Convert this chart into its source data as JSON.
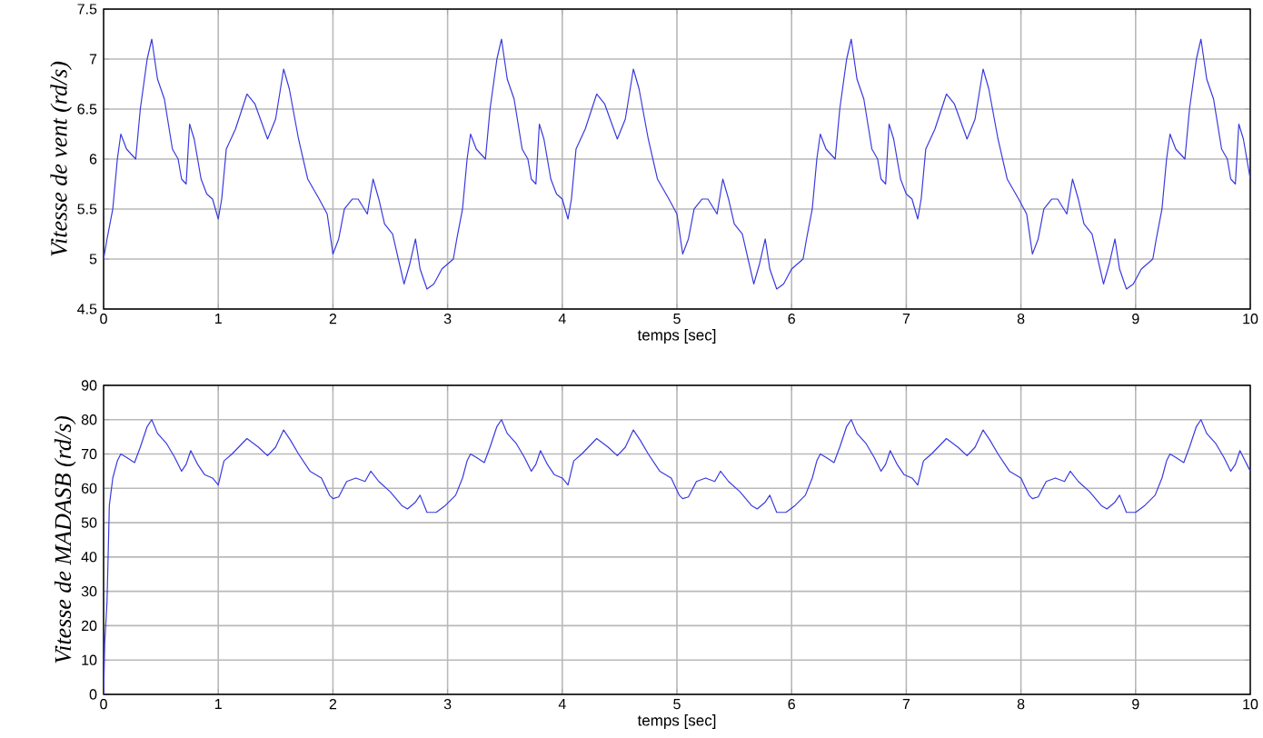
{
  "chart_data": [
    {
      "type": "line",
      "xlabel": "temps [sec]",
      "ylabel": "Vitesse de vent (rd/s)",
      "xlim": [
        0,
        10
      ],
      "ylim": [
        4.5,
        7.5
      ],
      "xticks": [
        0,
        1,
        2,
        3,
        4,
        5,
        6,
        7,
        8,
        9,
        10
      ],
      "yticks": [
        4.5,
        5,
        5.5,
        6,
        6.5,
        7,
        7.5
      ],
      "grid": true,
      "series": [
        {
          "color": "#3a3ae0",
          "x": [
            0,
            0.03,
            0.08,
            0.12,
            0.15,
            0.2,
            0.28,
            0.32,
            0.38,
            0.42,
            0.47,
            0.53,
            0.6,
            0.65,
            0.68,
            0.72,
            0.75,
            0.79,
            0.85,
            0.9,
            0.95,
            1.0,
            1.03,
            1.07,
            1.15,
            1.25,
            1.32,
            1.43,
            1.5,
            1.57,
            1.62,
            1.7,
            1.78,
            1.88,
            1.95,
            2.0,
            2.05,
            2.1,
            2.17,
            2.22,
            2.3,
            2.35,
            2.4,
            2.45,
            2.52,
            2.58,
            2.62,
            2.67,
            2.72,
            2.76,
            2.82,
            2.88,
            2.95,
            3.05,
            3.08,
            3.13,
            3.17,
            3.2,
            3.25,
            3.33,
            3.37,
            3.43,
            3.47,
            3.52,
            3.58,
            3.65,
            3.7,
            3.73,
            3.77,
            3.8,
            3.84,
            3.9,
            3.95,
            4.0,
            4.05,
            4.08,
            4.12,
            4.2,
            4.3,
            4.37,
            4.48,
            4.55,
            4.62,
            4.67,
            4.75,
            4.83,
            4.93,
            5.0,
            5.05,
            5.1,
            5.15,
            5.22,
            5.27,
            5.35,
            5.4,
            5.45,
            5.5,
            5.57,
            5.63,
            5.67,
            5.72,
            5.77,
            5.81,
            5.87,
            5.93,
            6.0,
            6.1,
            6.13,
            6.18,
            6.22,
            6.25,
            6.3,
            6.38,
            6.42,
            6.48,
            6.52,
            6.57,
            6.63,
            6.7,
            6.75,
            6.78,
            6.82,
            6.85,
            6.89,
            6.95,
            7.0,
            7.05,
            7.1,
            7.13,
            7.17,
            7.25,
            7.35,
            7.42,
            7.53,
            7.6,
            7.67,
            7.72,
            7.8,
            7.88,
            7.98,
            8.05,
            8.1,
            8.15,
            8.2,
            8.27,
            8.32,
            8.4,
            8.45,
            8.5,
            8.55,
            8.62,
            8.68,
            8.72,
            8.77,
            8.82,
            8.86,
            8.92,
            8.98,
            9.05,
            9.15,
            9.18,
            9.23,
            9.27,
            9.3,
            9.35,
            9.43,
            9.47,
            9.53,
            9.57,
            9.62,
            9.68,
            9.75,
            9.8,
            9.83,
            9.87,
            9.9,
            9.94,
            10.0
          ],
          "values": [
            5.0,
            5.2,
            5.5,
            6.0,
            6.25,
            6.1,
            6.0,
            6.5,
            7.0,
            7.2,
            6.8,
            6.6,
            6.1,
            6.0,
            5.8,
            5.75,
            6.35,
            6.2,
            5.8,
            5.65,
            5.6,
            5.4,
            5.6,
            6.1,
            6.3,
            6.65,
            6.55,
            6.2,
            6.4,
            6.9,
            6.7,
            6.2,
            5.8,
            5.6,
            5.45,
            5.05,
            5.2,
            5.5,
            5.6,
            5.6,
            5.45,
            5.8,
            5.6,
            5.35,
            5.25,
            4.95,
            4.75,
            4.95,
            5.2,
            4.9,
            4.7,
            4.75,
            4.9,
            5.0,
            5.2,
            5.5,
            6.0,
            6.25,
            6.1,
            6.0,
            6.5,
            7.0,
            7.2,
            6.8,
            6.6,
            6.1,
            6.0,
            5.8,
            5.75,
            6.35,
            6.2,
            5.8,
            5.65,
            5.6,
            5.4,
            5.6,
            6.1,
            6.3,
            6.65,
            6.55,
            6.2,
            6.4,
            6.9,
            6.7,
            6.2,
            5.8,
            5.6,
            5.45,
            5.05,
            5.2,
            5.5,
            5.6,
            5.6,
            5.45,
            5.8,
            5.6,
            5.35,
            5.25,
            4.95,
            4.75,
            4.95,
            5.2,
            4.9,
            4.7,
            4.75,
            4.9,
            5.0,
            5.2,
            5.5,
            6.0,
            6.25,
            6.1,
            6.0,
            6.5,
            7.0,
            7.2,
            6.8,
            6.6,
            6.1,
            6.0,
            5.8,
            5.75,
            6.35,
            6.2,
            5.8,
            5.65,
            5.6,
            5.4,
            5.6,
            6.1,
            6.3,
            6.65,
            6.55,
            6.2,
            6.4,
            6.9,
            6.7,
            6.2,
            5.8,
            5.6,
            5.45,
            5.05,
            5.2,
            5.5,
            5.6,
            5.6,
            5.45,
            5.8,
            5.6,
            5.35,
            5.25,
            4.95,
            4.75,
            4.95,
            5.2,
            4.9,
            4.7,
            4.75,
            4.9,
            5.0,
            5.2,
            5.5,
            6.0,
            6.25,
            6.1,
            6.0,
            6.5,
            7.0,
            7.2,
            6.8,
            6.6,
            6.1,
            6.0,
            5.8,
            5.75,
            6.35,
            6.2,
            5.8
          ]
        }
      ]
    },
    {
      "type": "line",
      "xlabel": "temps [sec]",
      "ylabel": "Vitesse de MADASB (rd/s)",
      "xlim": [
        0,
        10
      ],
      "ylim": [
        0,
        90
      ],
      "xticks": [
        0,
        1,
        2,
        3,
        4,
        5,
        6,
        7,
        8,
        9,
        10
      ],
      "yticks": [
        0,
        10,
        20,
        30,
        40,
        50,
        60,
        70,
        80,
        90
      ],
      "grid": true,
      "series": [
        {
          "color": "#3a3ae0",
          "x": [
            0,
            0.01,
            0.03,
            0.05,
            0.08,
            0.12,
            0.15,
            0.2,
            0.27,
            0.32,
            0.38,
            0.42,
            0.47,
            0.55,
            0.62,
            0.68,
            0.72,
            0.76,
            0.82,
            0.88,
            0.95,
            1.0,
            1.05,
            1.12,
            1.25,
            1.35,
            1.43,
            1.5,
            1.57,
            1.63,
            1.7,
            1.8,
            1.9,
            1.97,
            2.0,
            2.05,
            2.12,
            2.2,
            2.28,
            2.33,
            2.4,
            2.5,
            2.6,
            2.65,
            2.72,
            2.76,
            2.82,
            2.9,
            2.98,
            3.07,
            3.13,
            3.17,
            3.2,
            3.25,
            3.32,
            3.37,
            3.43,
            3.47,
            3.52,
            3.6,
            3.67,
            3.73,
            3.77,
            3.81,
            3.87,
            3.93,
            4.0,
            4.05,
            4.1,
            4.17,
            4.3,
            4.4,
            4.48,
            4.55,
            4.62,
            4.68,
            4.75,
            4.85,
            4.95,
            5.02,
            5.05,
            5.1,
            5.17,
            5.25,
            5.33,
            5.38,
            5.45,
            5.55,
            5.65,
            5.7,
            5.77,
            5.81,
            5.87,
            5.95,
            6.03,
            6.12,
            6.18,
            6.22,
            6.25,
            6.3,
            6.37,
            6.42,
            6.48,
            6.52,
            6.57,
            6.65,
            6.72,
            6.78,
            6.82,
            6.86,
            6.92,
            6.98,
            7.05,
            7.1,
            7.15,
            7.22,
            7.35,
            7.45,
            7.53,
            7.6,
            7.67,
            7.73,
            7.8,
            7.9,
            8.0,
            8.07,
            8.1,
            8.15,
            8.22,
            8.3,
            8.38,
            8.43,
            8.5,
            8.6,
            8.7,
            8.75,
            8.82,
            8.86,
            8.92,
            9.0,
            9.08,
            9.17,
            9.23,
            9.27,
            9.3,
            9.35,
            9.42,
            9.47,
            9.53,
            9.57,
            9.62,
            9.7,
            9.77,
            9.83,
            9.87,
            9.91,
            9.97,
            10.0
          ],
          "values": [
            0,
            15,
            27,
            55,
            63,
            68,
            70,
            69,
            67.5,
            72,
            78,
            80,
            76,
            73,
            69,
            65,
            67,
            71,
            67,
            64,
            63,
            61,
            68,
            70,
            74.5,
            72,
            69.5,
            72,
            77,
            74,
            70,
            65,
            63,
            58,
            57,
            57.5,
            62,
            63,
            62,
            65,
            62,
            59,
            55,
            54,
            56,
            58,
            53,
            53,
            55,
            58,
            63,
            68,
            70,
            69,
            67.5,
            72,
            78,
            80,
            76,
            73,
            69,
            65,
            67,
            71,
            67,
            64,
            63,
            61,
            68,
            70,
            74.5,
            72,
            69.5,
            72,
            77,
            74,
            70,
            65,
            63,
            58,
            57,
            57.5,
            62,
            63,
            62,
            65,
            62,
            59,
            55,
            54,
            56,
            58,
            53,
            53,
            55,
            58,
            63,
            68,
            70,
            69,
            67.5,
            72,
            78,
            80,
            76,
            73,
            69,
            65,
            67,
            71,
            67,
            64,
            63,
            61,
            68,
            70,
            74.5,
            72,
            69.5,
            72,
            77,
            74,
            70,
            65,
            63,
            58,
            57,
            57.5,
            62,
            63,
            62,
            65,
            62,
            59,
            55,
            54,
            56,
            58,
            53,
            53,
            55,
            58,
            63,
            68,
            70,
            69,
            67.5,
            72,
            78,
            80,
            76,
            73,
            69,
            65,
            67,
            71,
            67,
            65
          ]
        }
      ]
    }
  ]
}
